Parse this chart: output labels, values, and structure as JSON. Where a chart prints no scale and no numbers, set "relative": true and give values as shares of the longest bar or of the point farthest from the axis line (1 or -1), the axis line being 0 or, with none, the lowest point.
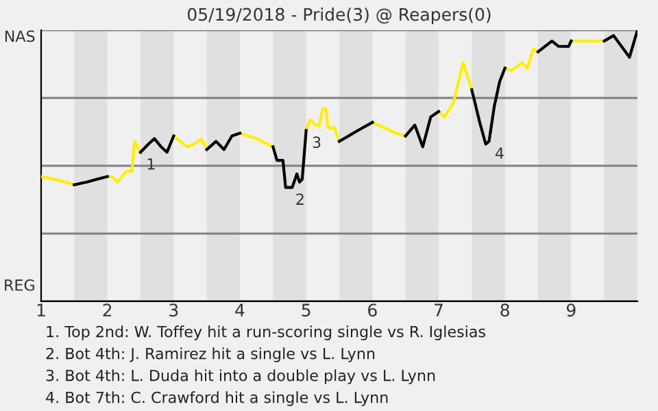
{
  "chart_data": {
    "type": "line",
    "title": "05/19/2018 - Pride(3) @ Reapers(0)",
    "relative": true,
    "x": [
      1,
      1.21,
      1.5,
      1.69,
      1.84,
      2,
      2.07,
      2.15,
      2.22,
      2.29,
      2.37,
      2.41,
      2.5,
      2.62,
      2.71,
      2.81,
      2.9,
      3,
      3.1,
      3.21,
      3.31,
      3.42,
      3.5,
      3.64,
      3.76,
      3.88,
      4,
      4.25,
      4.5,
      4.56,
      4.65,
      4.69,
      4.79,
      4.86,
      4.9,
      4.94,
      5,
      5.06,
      5.14,
      5.2,
      5.25,
      5.3,
      5.33,
      5.43,
      5.5,
      5.78,
      6,
      6.36,
      6.5,
      6.64,
      6.76,
      6.88,
      7,
      7.09,
      7.22,
      7.37,
      7.5,
      7.62,
      7.71,
      7.76,
      7.84,
      7.92,
      8,
      8.09,
      8.26,
      8.34,
      8.43,
      8.5,
      8.71,
      8.81,
      8.96,
      9,
      9.39,
      9.5,
      9.64,
      9.88,
      10
    ],
    "series": [
      {
        "color": "#ffee00",
        "values": [
          0.46,
          0.45,
          0.43,
          null,
          null,
          0.46,
          0.46,
          0.44,
          0.46,
          0.48,
          0.48,
          0.59,
          0.55,
          null,
          null,
          null,
          null,
          0.61,
          0.59,
          0.57,
          0.58,
          0.6,
          0.56,
          null,
          null,
          null,
          0.62,
          0.6,
          0.57,
          null,
          null,
          null,
          null,
          null,
          null,
          null,
          0.63,
          0.67,
          0.65,
          0.65,
          0.71,
          0.71,
          0.64,
          0.64,
          0.59,
          null,
          0.66,
          0.62,
          0.61,
          null,
          null,
          null,
          0.7,
          0.68,
          0.73,
          0.88,
          0.78,
          null,
          null,
          null,
          null,
          null,
          0.86,
          0.85,
          0.88,
          0.86,
          0.93,
          0.92,
          null,
          null,
          null,
          0.96,
          0.96,
          0.96,
          null,
          null,
          null
        ]
      },
      {
        "color": "#000000",
        "values": [
          null,
          null,
          0.43,
          0.44,
          0.45,
          0.46,
          null,
          null,
          null,
          null,
          null,
          null,
          0.55,
          0.58,
          0.6,
          0.57,
          0.55,
          0.61,
          null,
          null,
          null,
          null,
          0.56,
          0.59,
          0.56,
          0.61,
          0.62,
          null,
          0.57,
          0.52,
          0.52,
          0.42,
          0.42,
          0.47,
          0.44,
          0.45,
          0.63,
          null,
          null,
          null,
          null,
          null,
          null,
          null,
          0.59,
          0.63,
          0.66,
          null,
          0.61,
          0.65,
          0.57,
          0.68,
          0.7,
          null,
          null,
          null,
          0.78,
          0.66,
          0.58,
          0.59,
          0.72,
          0.81,
          0.86,
          null,
          null,
          null,
          null,
          0.92,
          0.96,
          0.94,
          0.94,
          0.96,
          null,
          0.96,
          0.98,
          0.9,
          1.0
        ]
      }
    ],
    "xlim": [
      1,
      10
    ],
    "xticks": [
      1,
      2,
      3,
      4,
      5,
      6,
      7,
      8,
      9
    ],
    "bands": [
      {
        "axis": "x",
        "from": 1.5,
        "to": 2,
        "color": "#e0e0e0"
      },
      {
        "axis": "x",
        "from": 2.5,
        "to": 3,
        "color": "#e0e0e0"
      },
      {
        "axis": "x",
        "from": 3.5,
        "to": 4,
        "color": "#e0e0e0"
      },
      {
        "axis": "x",
        "from": 4.5,
        "to": 5,
        "color": "#e0e0e0"
      },
      {
        "axis": "x",
        "from": 5.5,
        "to": 6,
        "color": "#e0e0e0"
      },
      {
        "axis": "x",
        "from": 6.5,
        "to": 7,
        "color": "#e0e0e0"
      },
      {
        "axis": "x",
        "from": 7.5,
        "to": 8,
        "color": "#e0e0e0"
      },
      {
        "axis": "x",
        "from": 8.5,
        "to": 9,
        "color": "#e0e0e0"
      },
      {
        "axis": "x",
        "from": 9.5,
        "to": 10,
        "color": "#e0e0e0"
      }
    ],
    "ref_lines": [
      {
        "axis": "y",
        "value": 0.25,
        "color": "#808080"
      },
      {
        "axis": "y",
        "value": 0.5,
        "color": "#808080"
      },
      {
        "axis": "y",
        "value": 0.75,
        "color": "#808080"
      },
      {
        "axis": "y",
        "value": 1,
        "color": "#808080",
        "label": "NAS"
      },
      {
        "axis": "y",
        "value": 0,
        "color": "#000000",
        "label": "REG"
      }
    ],
    "annotations": [
      {
        "text": "1",
        "x": 2.5,
        "y": 0.55
      },
      {
        "text": "2",
        "x": 4.75,
        "y": 0.42
      },
      {
        "text": "3",
        "x": 5,
        "y": 0.63
      },
      {
        "text": "4",
        "x": 7.76,
        "y": 0.59
      },
      "1. Top 2nd: W. Toffey hit a run-scoring single vs R. Iglesias",
      "2. Bot 4th: J. Ramirez hit a single vs L. Lynn",
      "3. Bot 4th: L. Duda hit into a double play vs L. Lynn",
      "4. Bot 7th: C. Crawford hit a single vs L. Lynn"
    ]
  }
}
